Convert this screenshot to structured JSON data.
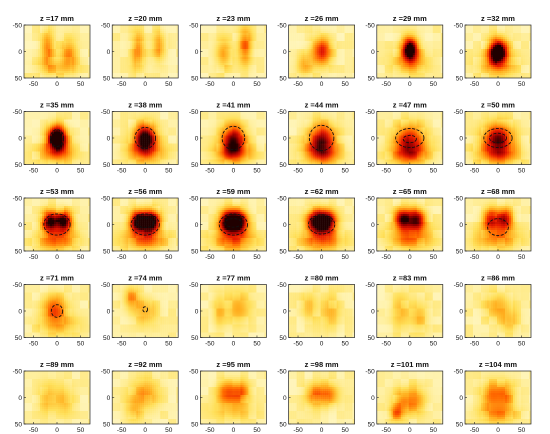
{
  "chart_data": {
    "type": "heatmap",
    "colormap": [
      "#ffffff",
      "#fff3b0",
      "#ffe05a",
      "#ffb020",
      "#ff6a00",
      "#e81c00",
      "#a00000",
      "#200000"
    ],
    "axis_ticks": {
      "x": [
        -50,
        0,
        50
      ],
      "y": [
        -50,
        0,
        50
      ]
    },
    "xlim": [
      -70,
      70
    ],
    "ylim": [
      -50,
      50
    ],
    "y_reversed": true,
    "panels": [
      {
        "title": "z =17 mm",
        "blobs": [
          {
            "x": -20,
            "y": -5,
            "sx": 10,
            "sy": 25,
            "v": 0.35
          },
          {
            "x": 25,
            "y": 5,
            "sx": 12,
            "sy": 20,
            "v": 0.3
          },
          {
            "x": 0,
            "y": 30,
            "sx": 30,
            "sy": 12,
            "v": 0.2
          }
        ]
      },
      {
        "title": "z =20 mm",
        "blobs": [
          {
            "x": -15,
            "y": 0,
            "sx": 10,
            "sy": 25,
            "v": 0.35
          },
          {
            "x": 30,
            "y": -10,
            "sx": 10,
            "sy": 20,
            "v": 0.3
          }
        ]
      },
      {
        "title": "z =23 mm",
        "blobs": [
          {
            "x": 25,
            "y": -10,
            "sx": 10,
            "sy": 25,
            "v": 0.4
          },
          {
            "x": -20,
            "y": 5,
            "sx": 12,
            "sy": 20,
            "v": 0.3
          }
        ]
      },
      {
        "title": "z =26 mm",
        "blobs": [
          {
            "x": 0,
            "y": 0,
            "sx": 15,
            "sy": 18,
            "v": 0.55
          },
          {
            "x": -35,
            "y": 25,
            "sx": 12,
            "sy": 15,
            "v": 0.25
          }
        ]
      },
      {
        "title": "z =29 mm",
        "blobs": [
          {
            "x": 0,
            "y": -5,
            "sx": 12,
            "sy": 15,
            "v": 0.95
          },
          {
            "x": 0,
            "y": 20,
            "sx": 25,
            "sy": 15,
            "v": 0.3
          }
        ]
      },
      {
        "title": "z =32 mm",
        "blobs": [
          {
            "x": 0,
            "y": 0,
            "sx": 14,
            "sy": 16,
            "v": 1.05
          },
          {
            "x": 0,
            "y": 25,
            "sx": 28,
            "sy": 15,
            "v": 0.3
          }
        ]
      },
      {
        "title": "z =35 mm",
        "blobs": [
          {
            "x": 0,
            "y": 0,
            "sx": 14,
            "sy": 16,
            "v": 1.15
          },
          {
            "x": 0,
            "y": 28,
            "sx": 28,
            "sy": 14,
            "v": 0.35
          }
        ],
        "contours": [
          {
            "x": 0,
            "y": 0,
            "rx": 14,
            "ry": 16
          }
        ]
      },
      {
        "title": "z =38 mm",
        "blobs": [
          {
            "x": 0,
            "y": 0,
            "sx": 16,
            "sy": 18,
            "v": 0.95
          },
          {
            "x": 0,
            "y": 28,
            "sx": 30,
            "sy": 14,
            "v": 0.35
          }
        ],
        "contours": [
          {
            "x": 0,
            "y": 0,
            "rx": 22,
            "ry": 20
          }
        ]
      },
      {
        "title": "z =41 mm",
        "blobs": [
          {
            "x": 0,
            "y": 5,
            "sx": 18,
            "sy": 20,
            "v": 0.8
          },
          {
            "x": 0,
            "y": 30,
            "sx": 30,
            "sy": 12,
            "v": 0.35
          }
        ],
        "contours": [
          {
            "x": 0,
            "y": 0,
            "rx": 24,
            "ry": 22
          }
        ]
      },
      {
        "title": "z =44 mm",
        "blobs": [
          {
            "x": 0,
            "y": 5,
            "sx": 20,
            "sy": 22,
            "v": 0.7
          },
          {
            "x": 0,
            "y": 30,
            "sx": 30,
            "sy": 14,
            "v": 0.35
          }
        ],
        "contours": [
          {
            "x": 0,
            "y": 0,
            "rx": 26,
            "ry": 24
          }
        ]
      },
      {
        "title": "z =47 mm",
        "blobs": [
          {
            "x": 0,
            "y": 5,
            "sx": 22,
            "sy": 22,
            "v": 0.6
          },
          {
            "x": 0,
            "y": 30,
            "sx": 32,
            "sy": 14,
            "v": 0.35
          }
        ],
        "contours": [
          {
            "x": 0,
            "y": 0,
            "rx": 30,
            "ry": 18
          },
          {
            "x": 0,
            "y": 2,
            "rx": 14,
            "ry": 7
          }
        ]
      },
      {
        "title": "z =50 mm",
        "blobs": [
          {
            "x": 0,
            "y": 0,
            "sx": 22,
            "sy": 20,
            "v": 0.7
          },
          {
            "x": 0,
            "y": 30,
            "sx": 32,
            "sy": 14,
            "v": 0.4
          }
        ],
        "contours": [
          {
            "x": 0,
            "y": 0,
            "rx": 30,
            "ry": 18
          },
          {
            "x": 0,
            "y": 0,
            "rx": 18,
            "ry": 9
          }
        ]
      },
      {
        "title": "z =53 mm",
        "blobs": [
          {
            "x": -15,
            "y": -5,
            "sx": 12,
            "sy": 14,
            "v": 0.85
          },
          {
            "x": 15,
            "y": -5,
            "sx": 12,
            "sy": 14,
            "v": 0.85
          },
          {
            "x": 0,
            "y": 30,
            "sx": 30,
            "sy": 14,
            "v": 0.4
          }
        ],
        "contours": [
          {
            "x": 0,
            "y": 0,
            "rx": 28,
            "ry": 20
          }
        ]
      },
      {
        "title": "z =56 mm",
        "blobs": [
          {
            "x": -14,
            "y": -5,
            "sx": 13,
            "sy": 15,
            "v": 0.95
          },
          {
            "x": 14,
            "y": -5,
            "sx": 13,
            "sy": 15,
            "v": 0.95
          },
          {
            "x": 0,
            "y": 30,
            "sx": 32,
            "sy": 14,
            "v": 0.4
          }
        ],
        "contours": [
          {
            "x": 0,
            "y": 0,
            "rx": 30,
            "ry": 20
          },
          {
            "x": 0,
            "y": -3,
            "rx": 18,
            "ry": 9
          }
        ]
      },
      {
        "title": "z =59 mm",
        "blobs": [
          {
            "x": -12,
            "y": -5,
            "sx": 13,
            "sy": 15,
            "v": 0.9
          },
          {
            "x": 12,
            "y": -5,
            "sx": 13,
            "sy": 15,
            "v": 0.9
          },
          {
            "x": 0,
            "y": 30,
            "sx": 32,
            "sy": 14,
            "v": 0.4
          }
        ],
        "contours": [
          {
            "x": 0,
            "y": 0,
            "rx": 30,
            "ry": 20
          },
          {
            "x": 0,
            "y": -3,
            "rx": 18,
            "ry": 8
          }
        ]
      },
      {
        "title": "z =62 mm",
        "blobs": [
          {
            "x": -12,
            "y": -5,
            "sx": 14,
            "sy": 15,
            "v": 0.85
          },
          {
            "x": 12,
            "y": -5,
            "sx": 14,
            "sy": 15,
            "v": 0.85
          },
          {
            "x": 0,
            "y": 30,
            "sx": 32,
            "sy": 14,
            "v": 0.4
          }
        ],
        "contours": [
          {
            "x": 0,
            "y": 0,
            "rx": 28,
            "ry": 18
          }
        ]
      },
      {
        "title": "z =65 mm",
        "blobs": [
          {
            "x": -15,
            "y": -10,
            "sx": 13,
            "sy": 14,
            "v": 0.75
          },
          {
            "x": 15,
            "y": -10,
            "sx": 13,
            "sy": 14,
            "v": 0.75
          },
          {
            "x": 0,
            "y": 25,
            "sx": 32,
            "sy": 15,
            "v": 0.4
          }
        ]
      },
      {
        "title": "z =68 mm",
        "blobs": [
          {
            "x": -15,
            "y": -10,
            "sx": 12,
            "sy": 14,
            "v": 0.6
          },
          {
            "x": 15,
            "y": -10,
            "sx": 12,
            "sy": 14,
            "v": 0.6
          },
          {
            "x": 0,
            "y": 25,
            "sx": 32,
            "sy": 15,
            "v": 0.35
          }
        ],
        "contours": [
          {
            "x": 0,
            "y": 5,
            "rx": 22,
            "ry": 16
          }
        ]
      },
      {
        "title": "z =71 mm",
        "blobs": [
          {
            "x": -5,
            "y": -5,
            "sx": 18,
            "sy": 18,
            "v": 0.4
          },
          {
            "x": 0,
            "y": 25,
            "sx": 30,
            "sy": 15,
            "v": 0.25
          }
        ],
        "contours": [
          {
            "x": 0,
            "y": 0,
            "rx": 12,
            "ry": 12
          }
        ]
      },
      {
        "title": "z =74 mm",
        "blobs": [
          {
            "x": 0,
            "y": 0,
            "sx": 18,
            "sy": 18,
            "v": 0.25
          },
          {
            "x": -30,
            "y": -25,
            "sx": 12,
            "sy": 15,
            "v": 0.3
          }
        ],
        "contours": [
          {
            "x": 0,
            "y": -3,
            "rx": 5,
            "ry": 5
          }
        ]
      },
      {
        "title": "z =77 mm",
        "blobs": [
          {
            "x": 10,
            "y": -5,
            "sx": 18,
            "sy": 22,
            "v": 0.25
          },
          {
            "x": -30,
            "y": 0,
            "sx": 10,
            "sy": 25,
            "v": 0.2
          }
        ]
      },
      {
        "title": "z =80 mm",
        "blobs": [
          {
            "x": 20,
            "y": 0,
            "sx": 14,
            "sy": 25,
            "v": 0.2
          },
          {
            "x": -25,
            "y": -10,
            "sx": 14,
            "sy": 20,
            "v": 0.2
          }
        ]
      },
      {
        "title": "z =83 mm",
        "blobs": [
          {
            "x": -20,
            "y": 0,
            "sx": 14,
            "sy": 25,
            "v": 0.2
          },
          {
            "x": 20,
            "y": 10,
            "sx": 14,
            "sy": 22,
            "v": 0.2
          }
        ]
      },
      {
        "title": "z =86 mm",
        "blobs": [
          {
            "x": 0,
            "y": -10,
            "sx": 20,
            "sy": 18,
            "v": 0.25
          },
          {
            "x": 25,
            "y": 20,
            "sx": 14,
            "sy": 15,
            "v": 0.2
          }
        ]
      },
      {
        "title": "z =89 mm",
        "blobs": [
          {
            "x": -20,
            "y": 0,
            "sx": 14,
            "sy": 20,
            "v": 0.2
          },
          {
            "x": 15,
            "y": 5,
            "sx": 14,
            "sy": 20,
            "v": 0.2
          }
        ]
      },
      {
        "title": "z =92 mm",
        "blobs": [
          {
            "x": 0,
            "y": -5,
            "sx": 22,
            "sy": 20,
            "v": 0.3
          },
          {
            "x": -25,
            "y": 25,
            "sx": 12,
            "sy": 15,
            "v": 0.2
          }
        ]
      },
      {
        "title": "z =95 mm",
        "blobs": [
          {
            "x": -15,
            "y": -10,
            "sx": 14,
            "sy": 15,
            "v": 0.4
          },
          {
            "x": 15,
            "y": -10,
            "sx": 14,
            "sy": 15,
            "v": 0.4
          },
          {
            "x": 0,
            "y": 25,
            "sx": 30,
            "sy": 14,
            "v": 0.2
          }
        ]
      },
      {
        "title": "z =98 mm",
        "blobs": [
          {
            "x": -15,
            "y": -5,
            "sx": 14,
            "sy": 15,
            "v": 0.35
          },
          {
            "x": 15,
            "y": -5,
            "sx": 14,
            "sy": 15,
            "v": 0.35
          }
        ]
      },
      {
        "title": "z =101 mm",
        "blobs": [
          {
            "x": -15,
            "y": 10,
            "sx": 14,
            "sy": 18,
            "v": 0.35
          },
          {
            "x": 15,
            "y": 5,
            "sx": 14,
            "sy": 18,
            "v": 0.3
          },
          {
            "x": -30,
            "y": 30,
            "sx": 10,
            "sy": 10,
            "v": 0.3
          }
        ]
      },
      {
        "title": "z =104 mm",
        "blobs": [
          {
            "x": -15,
            "y": -5,
            "sx": 14,
            "sy": 18,
            "v": 0.35
          },
          {
            "x": 15,
            "y": -5,
            "sx": 14,
            "sy": 18,
            "v": 0.35
          },
          {
            "x": 0,
            "y": 30,
            "sx": 30,
            "sy": 12,
            "v": 0.3
          }
        ]
      }
    ]
  }
}
